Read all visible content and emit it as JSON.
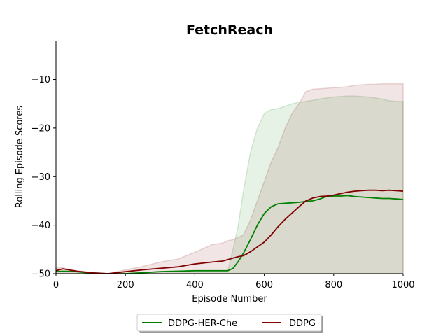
{
  "chart_data": {
    "type": "line",
    "title": "FetchReach",
    "xlabel": "Episode Number",
    "ylabel": "Rolling Episode Scores",
    "xlim": [
      0,
      1000
    ],
    "ylim": [
      -50,
      -2
    ],
    "xticks": [
      0,
      200,
      400,
      600,
      800,
      1000
    ],
    "yticks": [
      -50,
      -40,
      -30,
      -20,
      -10
    ],
    "grid": false,
    "legend_position": "bottom-center",
    "series": [
      {
        "name": "DDPG-HER-Che",
        "color": "#008000",
        "x": [
          0,
          20,
          60,
          100,
          150,
          200,
          250,
          300,
          350,
          400,
          450,
          480,
          495,
          510,
          525,
          540,
          560,
          580,
          600,
          620,
          640,
          660,
          680,
          700,
          720,
          740,
          760,
          780,
          800,
          820,
          840,
          860,
          880,
          900,
          920,
          940,
          960,
          980,
          1000
        ],
        "y": [
          -49.6,
          -49.5,
          -49.6,
          -49.9,
          -50.0,
          -50.0,
          -49.8,
          -49.6,
          -49.5,
          -49.4,
          -49.4,
          -49.4,
          -49.4,
          -48.9,
          -47.5,
          -45.8,
          -43.0,
          -40.0,
          -37.6,
          -36.2,
          -35.6,
          -35.5,
          -35.4,
          -35.3,
          -35.1,
          -35.0,
          -34.6,
          -34.1,
          -34.0,
          -34.0,
          -33.9,
          -34.1,
          -34.2,
          -34.3,
          -34.4,
          -34.5,
          -34.5,
          -34.6,
          -34.7
        ],
        "band_upper": [
          -49.6,
          -49.5,
          -49.6,
          -49.9,
          -50.0,
          -50.0,
          -49.8,
          -49.6,
          -49.5,
          -49.4,
          -49.4,
          -49.4,
          -49.4,
          -45.0,
          -40.0,
          -33.0,
          -25.0,
          -20.0,
          -17.0,
          -16.2,
          -16.0,
          -15.5,
          -15.0,
          -14.7,
          -14.5,
          -14.3,
          -14.0,
          -13.8,
          -13.6,
          -13.5,
          -13.4,
          -13.4,
          -13.5,
          -13.6,
          -13.8,
          -14.0,
          -14.4,
          -14.5,
          -14.5
        ],
        "band_lower": [
          -50.0,
          -50.0,
          -50.0,
          -50.0,
          -50.0,
          -50.0,
          -50.0,
          -50.0,
          -50.0,
          -50.0,
          -50.0,
          -50.0,
          -50.0,
          -50.0,
          -50.0,
          -50.0,
          -50.0,
          -50.0,
          -50.0,
          -50.0,
          -50.0,
          -50.0,
          -50.0,
          -50.0,
          -50.0,
          -50.0,
          -50.0,
          -50.0,
          -50.0,
          -50.0,
          -50.0,
          -50.0,
          -50.0,
          -50.0,
          -50.0,
          -50.0,
          -50.0,
          -50.0,
          -50.0
        ]
      },
      {
        "name": "DDPG",
        "color": "#800000",
        "x": [
          0,
          20,
          60,
          100,
          150,
          200,
          250,
          300,
          350,
          400,
          450,
          480,
          495,
          510,
          525,
          540,
          560,
          580,
          600,
          620,
          640,
          660,
          680,
          700,
          720,
          740,
          760,
          780,
          800,
          820,
          840,
          860,
          880,
          900,
          920,
          940,
          960,
          980,
          1000
        ],
        "y": [
          -49.4,
          -49.0,
          -49.5,
          -49.8,
          -50.0,
          -49.6,
          -49.2,
          -48.9,
          -48.6,
          -48.0,
          -47.6,
          -47.4,
          -47.1,
          -46.8,
          -46.5,
          -46.3,
          -45.5,
          -44.5,
          -43.5,
          -42.0,
          -40.3,
          -38.8,
          -37.5,
          -36.2,
          -35.0,
          -34.4,
          -34.1,
          -34.0,
          -33.8,
          -33.5,
          -33.2,
          -33.0,
          -32.9,
          -32.8,
          -32.8,
          -32.9,
          -32.8,
          -32.9,
          -33.0
        ],
        "band_upper": [
          -48.8,
          -48.8,
          -49.4,
          -49.7,
          -50.0,
          -49.2,
          -48.5,
          -47.6,
          -47.0,
          -45.6,
          -44.0,
          -43.7,
          -43.2,
          -43.0,
          -42.5,
          -42.0,
          -39.0,
          -35.0,
          -31.0,
          -27.0,
          -24.0,
          -20.0,
          -17.0,
          -15.0,
          -12.5,
          -12.0,
          -11.9,
          -11.8,
          -11.7,
          -11.6,
          -11.5,
          -11.2,
          -11.1,
          -11.0,
          -11.0,
          -10.9,
          -10.9,
          -10.9,
          -10.9
        ],
        "band_lower": [
          -50.0,
          -50.0,
          -50.0,
          -50.0,
          -50.0,
          -50.0,
          -50.0,
          -50.0,
          -50.0,
          -50.0,
          -50.0,
          -50.0,
          -50.0,
          -50.0,
          -50.0,
          -50.0,
          -50.0,
          -50.0,
          -50.0,
          -50.0,
          -50.0,
          -50.0,
          -50.0,
          -50.0,
          -50.0,
          -50.0,
          -50.0,
          -50.0,
          -50.0,
          -50.0,
          -50.0,
          -50.0,
          -50.0,
          -50.0,
          -50.0,
          -50.0,
          -50.0,
          -50.0,
          -50.0
        ]
      }
    ]
  }
}
